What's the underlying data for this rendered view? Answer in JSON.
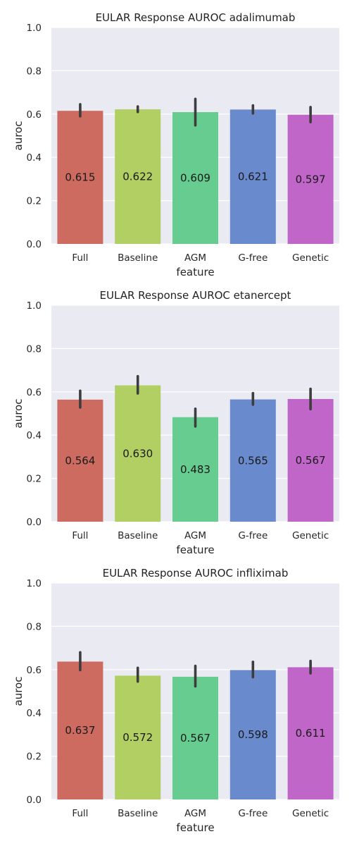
{
  "chart_data": [
    {
      "type": "bar",
      "title": "EULAR Response AUROC adalimumab",
      "xlabel": "feature",
      "ylabel": "auroc",
      "ylim": [
        0,
        1
      ],
      "yticks": [
        "0.0",
        "0.2",
        "0.4",
        "0.6",
        "0.8",
        "1.0"
      ],
      "grid": true,
      "categories": [
        "Full",
        "Baseline",
        "AGM",
        "G-free",
        "Genetic"
      ],
      "values": [
        0.615,
        0.622,
        0.609,
        0.621,
        0.597
      ],
      "value_labels": [
        "0.615",
        "0.622",
        "0.609",
        "0.621",
        "0.597"
      ],
      "error_low": [
        0.59,
        0.61,
        0.548,
        0.603,
        0.563
      ],
      "error_high": [
        0.645,
        0.635,
        0.67,
        0.64,
        0.632
      ],
      "colors": [
        "#cd6b61",
        "#b2cf63",
        "#66cc8f",
        "#6a8ace",
        "#c066c9"
      ]
    },
    {
      "type": "bar",
      "title": "EULAR Response AUROC etanercept",
      "xlabel": "feature",
      "ylabel": "auroc",
      "ylim": [
        0,
        1
      ],
      "yticks": [
        "0.0",
        "0.2",
        "0.4",
        "0.6",
        "0.8",
        "1.0"
      ],
      "grid": true,
      "categories": [
        "Full",
        "Baseline",
        "AGM",
        "G-free",
        "Genetic"
      ],
      "values": [
        0.564,
        0.63,
        0.483,
        0.565,
        0.567
      ],
      "value_labels": [
        "0.564",
        "0.630",
        "0.483",
        "0.565",
        "0.567"
      ],
      "error_low": [
        0.528,
        0.593,
        0.44,
        0.541,
        0.52
      ],
      "error_high": [
        0.605,
        0.672,
        0.522,
        0.594,
        0.614
      ],
      "colors": [
        "#cd6b61",
        "#b2cf63",
        "#66cc8f",
        "#6a8ace",
        "#c066c9"
      ]
    },
    {
      "type": "bar",
      "title": "EULAR Response AUROC infliximab",
      "xlabel": "feature",
      "ylabel": "auroc",
      "ylim": [
        0,
        1
      ],
      "yticks": [
        "0.0",
        "0.2",
        "0.4",
        "0.6",
        "0.8",
        "1.0"
      ],
      "grid": true,
      "categories": [
        "Full",
        "Baseline",
        "AGM",
        "G-free",
        "Genetic"
      ],
      "values": [
        0.637,
        0.572,
        0.567,
        0.598,
        0.611
      ],
      "value_labels": [
        "0.637",
        "0.572",
        "0.567",
        "0.598",
        "0.611"
      ],
      "error_low": [
        0.598,
        0.545,
        0.523,
        0.565,
        0.583
      ],
      "error_high": [
        0.68,
        0.608,
        0.617,
        0.636,
        0.64
      ],
      "colors": [
        "#cd6b61",
        "#b2cf63",
        "#66cc8f",
        "#6a8ace",
        "#c066c9"
      ]
    }
  ]
}
